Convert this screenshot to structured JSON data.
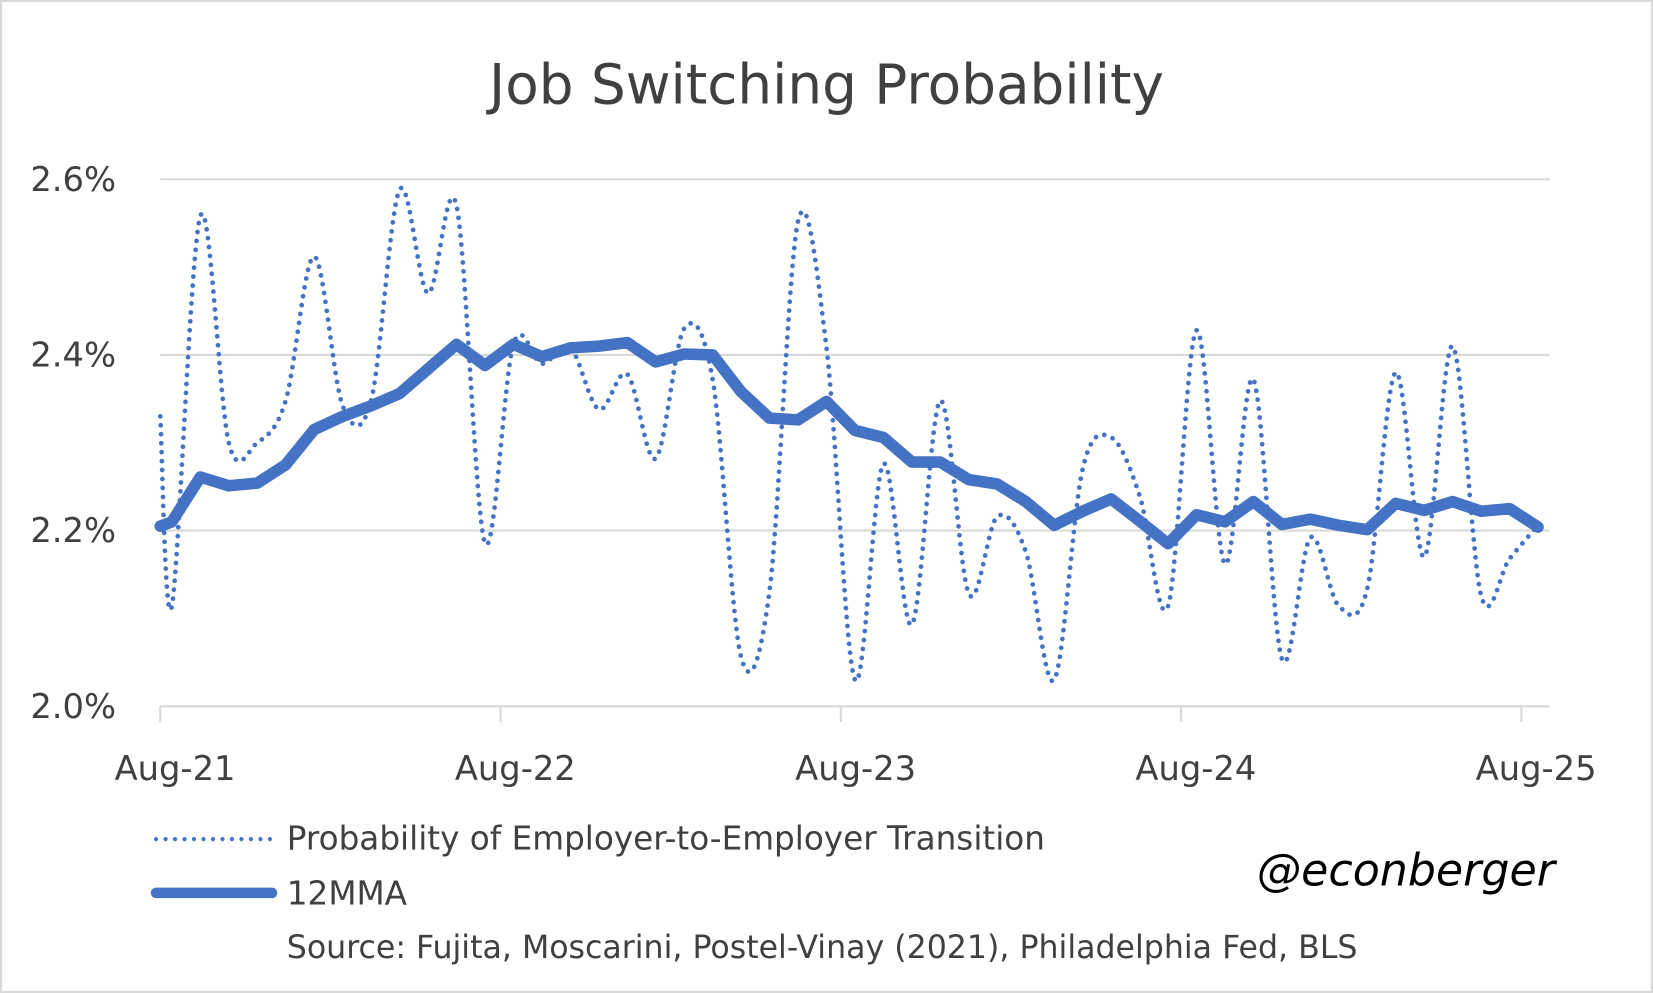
{
  "chart_data": {
    "type": "line",
    "title": "Job Switching Probability",
    "xlabel": "",
    "ylabel": "",
    "ylim": [
      2.0,
      2.6
    ],
    "y_ticks": [
      "2.0%",
      "2.2%",
      "2.4%",
      "2.6%"
    ],
    "y_tick_values": [
      2.0,
      2.2,
      2.4,
      2.6
    ],
    "x_ticks": [
      "Aug-21",
      "Aug-22",
      "Aug-23",
      "Aug-24",
      "Aug-25"
    ],
    "x_tick_index": [
      0,
      12,
      24,
      36,
      48
    ],
    "grid": true,
    "legend_position": "bottom-left",
    "series": [
      {
        "name": "Probability of Employer-to-Employer Transition",
        "style": "dotted",
        "color": "#4472C4",
        "leading_value": 2.33,
        "values": [
          2.114,
          2.558,
          2.3,
          2.3,
          2.348,
          2.512,
          2.342,
          2.348,
          2.588,
          2.47,
          2.57,
          2.186,
          2.412,
          2.39,
          2.408,
          2.338,
          2.378,
          2.282,
          2.43,
          2.372,
          2.056,
          2.132,
          2.552,
          2.408,
          2.03,
          2.276,
          2.093,
          2.348,
          2.128,
          2.216,
          2.176,
          2.03,
          2.27,
          2.306,
          2.24,
          2.114,
          2.428,
          2.162,
          2.372,
          2.054,
          2.192,
          2.114,
          2.134,
          2.38,
          2.17,
          2.41,
          2.126,
          2.168,
          2.206
        ]
      },
      {
        "name": "12MMA",
        "style": "solid",
        "color": "#4472C4",
        "leading_value": 2.205,
        "values": [
          2.21,
          2.261,
          2.251,
          2.254,
          2.275,
          2.315,
          2.33,
          2.342,
          2.356,
          2.384,
          2.412,
          2.388,
          2.412,
          2.398,
          2.408,
          2.41,
          2.414,
          2.392,
          2.401,
          2.4,
          2.358,
          2.328,
          2.326,
          2.347,
          2.314,
          2.306,
          2.278,
          2.278,
          2.258,
          2.253,
          2.233,
          2.206,
          2.222,
          2.236,
          2.211,
          2.185,
          2.218,
          2.21,
          2.233,
          2.207,
          2.213,
          2.206,
          2.201,
          2.231,
          2.223,
          2.233,
          2.222,
          2.225,
          2.204
        ]
      }
    ],
    "source": "Source: Fujita, Moscarini, Postel-Vinay (2021), Philadelphia Fed, BLS",
    "watermark": "@econberger"
  }
}
